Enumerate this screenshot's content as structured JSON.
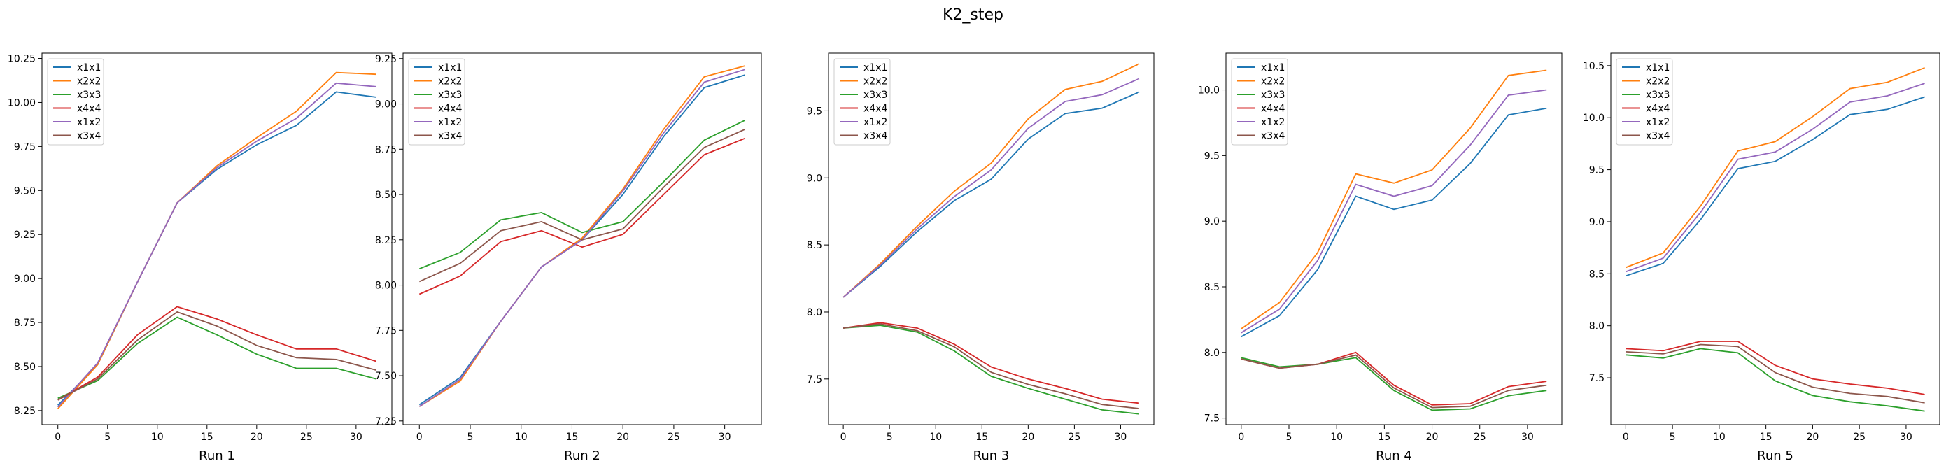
{
  "figure": {
    "title": "K2_step"
  },
  "colors": {
    "x1x1": "#1f77b4",
    "x2x2": "#ff7f0e",
    "x3x3": "#2ca02c",
    "x4x4": "#d62728",
    "x1x2": "#9467bd",
    "x3x4": "#8c564b"
  },
  "chart_data": [
    {
      "type": "line",
      "title": "",
      "xlabel": "Run 1",
      "ylabel": "",
      "x": [
        0,
        4,
        8,
        12,
        16,
        20,
        24,
        28,
        32
      ],
      "xticks": [
        0,
        5,
        10,
        15,
        20,
        25,
        30
      ],
      "xlim": [
        -1.6,
        33.6
      ],
      "ylim": [
        8.17,
        10.28
      ],
      "yticks": [
        8.25,
        8.5,
        8.75,
        9.0,
        9.25,
        9.5,
        9.75,
        10.0,
        10.25
      ],
      "ytick_labels": [
        "8.25",
        "8.50",
        "8.75",
        "9.00",
        "9.25",
        "9.50",
        "9.75",
        "10.00",
        "10.25"
      ],
      "legend": "upper-left",
      "series": [
        {
          "name": "x1x1",
          "values": [
            8.28,
            8.51,
            8.98,
            9.43,
            9.62,
            9.76,
            9.87,
            10.06,
            10.03
          ]
        },
        {
          "name": "x2x2",
          "values": [
            8.26,
            8.51,
            8.98,
            9.43,
            9.64,
            9.8,
            9.95,
            10.17,
            10.16
          ]
        },
        {
          "name": "x3x3",
          "values": [
            8.32,
            8.42,
            8.63,
            8.78,
            8.68,
            8.57,
            8.49,
            8.49,
            8.43
          ]
        },
        {
          "name": "x4x4",
          "values": [
            8.31,
            8.44,
            8.68,
            8.84,
            8.77,
            8.68,
            8.6,
            8.6,
            8.53
          ]
        },
        {
          "name": "x1x2",
          "values": [
            8.27,
            8.52,
            8.98,
            9.43,
            9.63,
            9.78,
            9.91,
            10.11,
            10.09
          ]
        },
        {
          "name": "x3x4",
          "values": [
            8.31,
            8.43,
            8.65,
            8.81,
            8.73,
            8.62,
            8.55,
            8.54,
            8.48
          ]
        }
      ]
    },
    {
      "type": "line",
      "title": "",
      "xlabel": "Run 2",
      "ylabel": "",
      "x": [
        0,
        4,
        8,
        12,
        16,
        20,
        24,
        28,
        32
      ],
      "xticks": [
        0,
        5,
        10,
        15,
        20,
        25,
        30
      ],
      "xlim": [
        -1.6,
        33.6
      ],
      "ylim": [
        7.23,
        9.28
      ],
      "yticks": [
        7.25,
        7.5,
        7.75,
        8.0,
        8.25,
        8.5,
        8.75,
        9.0,
        9.25
      ],
      "ytick_labels": [
        "7.25",
        "7.50",
        "7.75",
        "8.00",
        "8.25",
        "8.50",
        "8.75",
        "9.00",
        "9.25"
      ],
      "legend": "upper-left",
      "series": [
        {
          "name": "x1x1",
          "values": [
            7.34,
            7.49,
            7.8,
            8.1,
            8.25,
            8.5,
            8.82,
            9.09,
            9.16
          ]
        },
        {
          "name": "x2x2",
          "values": [
            7.33,
            7.47,
            7.8,
            8.1,
            8.26,
            8.53,
            8.86,
            9.15,
            9.21
          ]
        },
        {
          "name": "x3x3",
          "values": [
            8.09,
            8.18,
            8.36,
            8.4,
            8.29,
            8.35,
            8.57,
            8.8,
            8.91
          ]
        },
        {
          "name": "x4x4",
          "values": [
            7.95,
            8.05,
            8.24,
            8.3,
            8.21,
            8.28,
            8.5,
            8.72,
            8.81
          ]
        },
        {
          "name": "x1x2",
          "values": [
            7.33,
            7.48,
            7.8,
            8.1,
            8.25,
            8.52,
            8.84,
            9.12,
            9.19
          ]
        },
        {
          "name": "x3x4",
          "values": [
            8.02,
            8.12,
            8.3,
            8.35,
            8.25,
            8.31,
            8.54,
            8.76,
            8.86
          ]
        }
      ]
    },
    {
      "type": "line",
      "title": "",
      "xlabel": "Run 3",
      "ylabel": "",
      "x": [
        0,
        4,
        8,
        12,
        16,
        20,
        24,
        28,
        32
      ],
      "xticks": [
        0,
        5,
        10,
        15,
        20,
        25,
        30
      ],
      "xlim": [
        -1.6,
        33.6
      ],
      "ylim": [
        7.16,
        9.93
      ],
      "yticks": [
        7.5,
        8.0,
        8.5,
        9.0,
        9.5
      ],
      "ytick_labels": [
        "7.5",
        "8.0",
        "8.5",
        "9.0",
        "9.5"
      ],
      "legend": "upper-left",
      "series": [
        {
          "name": "x1x1",
          "values": [
            8.11,
            8.34,
            8.6,
            8.83,
            8.99,
            9.29,
            9.48,
            9.52,
            9.64
          ]
        },
        {
          "name": "x2x2",
          "values": [
            8.11,
            8.36,
            8.64,
            8.9,
            9.11,
            9.44,
            9.66,
            9.72,
            9.85
          ]
        },
        {
          "name": "x3x3",
          "values": [
            7.88,
            7.9,
            7.85,
            7.71,
            7.52,
            7.43,
            7.35,
            7.27,
            7.24
          ]
        },
        {
          "name": "x4x4",
          "values": [
            7.88,
            7.92,
            7.88,
            7.76,
            7.59,
            7.5,
            7.43,
            7.35,
            7.32
          ]
        },
        {
          "name": "x1x2",
          "values": [
            8.11,
            8.35,
            8.62,
            8.86,
            9.06,
            9.37,
            9.57,
            9.62,
            9.74
          ]
        },
        {
          "name": "x3x4",
          "values": [
            7.88,
            7.91,
            7.86,
            7.74,
            7.55,
            7.46,
            7.39,
            7.31,
            7.28
          ]
        }
      ]
    },
    {
      "type": "line",
      "title": "",
      "xlabel": "Run 4",
      "ylabel": "",
      "x": [
        0,
        4,
        8,
        12,
        16,
        20,
        24,
        28,
        32
      ],
      "xticks": [
        0,
        5,
        10,
        15,
        20,
        25,
        30
      ],
      "xlim": [
        -1.6,
        33.6
      ],
      "ylim": [
        7.45,
        10.28
      ],
      "yticks": [
        7.5,
        8.0,
        8.5,
        9.0,
        9.5,
        10.0
      ],
      "ytick_labels": [
        "7.5",
        "8.0",
        "8.5",
        "9.0",
        "9.5",
        "10.0"
      ],
      "legend": "upper-left",
      "series": [
        {
          "name": "x1x1",
          "values": [
            8.12,
            8.28,
            8.63,
            9.19,
            9.09,
            9.16,
            9.44,
            9.81,
            9.86
          ]
        },
        {
          "name": "x2x2",
          "values": [
            8.18,
            8.38,
            8.76,
            9.36,
            9.29,
            9.39,
            9.71,
            10.11,
            10.15
          ]
        },
        {
          "name": "x3x3",
          "values": [
            7.96,
            7.89,
            7.91,
            7.96,
            7.71,
            7.56,
            7.57,
            7.67,
            7.71
          ]
        },
        {
          "name": "x4x4",
          "values": [
            7.95,
            7.88,
            7.91,
            8.0,
            7.75,
            7.6,
            7.61,
            7.74,
            7.78
          ]
        },
        {
          "name": "x1x2",
          "values": [
            8.15,
            8.33,
            8.7,
            9.28,
            9.19,
            9.27,
            9.58,
            9.96,
            10.0
          ]
        },
        {
          "name": "x3x4",
          "values": [
            7.95,
            7.88,
            7.91,
            7.98,
            7.73,
            7.58,
            7.59,
            7.71,
            7.75
          ]
        }
      ]
    },
    {
      "type": "line",
      "title": "",
      "xlabel": "Run 5",
      "ylabel": "",
      "x": [
        0,
        4,
        8,
        12,
        16,
        20,
        24,
        28,
        32
      ],
      "xticks": [
        0,
        5,
        10,
        15,
        20,
        25,
        30
      ],
      "xlim": [
        -1.6,
        33.6
      ],
      "ylim": [
        7.05,
        10.62
      ],
      "yticks": [
        7.5,
        8.0,
        8.5,
        9.0,
        9.5,
        10.0,
        10.5
      ],
      "ytick_labels": [
        "7.5",
        "8.0",
        "8.5",
        "9.0",
        "9.5",
        "10.0",
        "10.5"
      ],
      "legend": "upper-left",
      "series": [
        {
          "name": "x1x1",
          "values": [
            8.48,
            8.6,
            9.02,
            9.51,
            9.58,
            9.79,
            10.03,
            10.08,
            10.2
          ]
        },
        {
          "name": "x2x2",
          "values": [
            8.56,
            8.7,
            9.15,
            9.68,
            9.77,
            10.01,
            10.28,
            10.34,
            10.48
          ]
        },
        {
          "name": "x3x3",
          "values": [
            7.72,
            7.69,
            7.78,
            7.74,
            7.47,
            7.33,
            7.27,
            7.23,
            7.18
          ]
        },
        {
          "name": "x4x4",
          "values": [
            7.78,
            7.76,
            7.85,
            7.85,
            7.62,
            7.49,
            7.44,
            7.4,
            7.34
          ]
        },
        {
          "name": "x1x2",
          "values": [
            8.52,
            8.65,
            9.09,
            9.6,
            9.67,
            9.89,
            10.15,
            10.21,
            10.33
          ]
        },
        {
          "name": "x3x4",
          "values": [
            7.75,
            7.73,
            7.82,
            7.8,
            7.55,
            7.41,
            7.35,
            7.32,
            7.26
          ]
        }
      ]
    }
  ]
}
